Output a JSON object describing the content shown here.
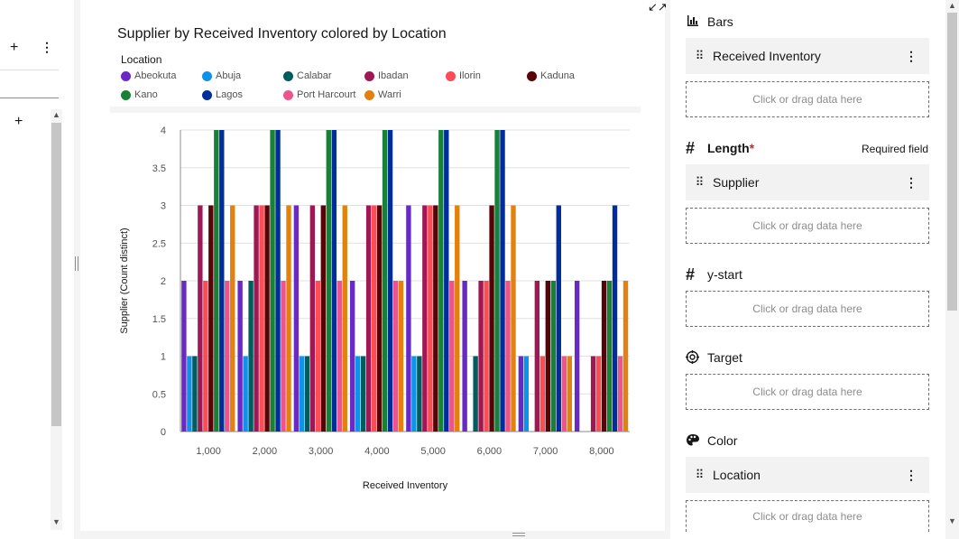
{
  "left_panel": {
    "plus_icon": "+",
    "kebab_icon": "⋮",
    "plus_icon_2": "+"
  },
  "collapse_icon": "↙↗",
  "chart_data": {
    "type": "bar",
    "title": "Supplier by Received Inventory colored by Location",
    "xlabel": "Received Inventory",
    "ylabel": "Supplier (Count distinct)",
    "ylim": [
      0,
      4
    ],
    "yticks": [
      "0",
      "0.5",
      "1",
      "1.5",
      "2",
      "2.5",
      "3",
      "3.5",
      "4"
    ],
    "categories": [
      "1,000",
      "2,000",
      "3,000",
      "4,000",
      "5,000",
      "6,000",
      "7,000",
      "8,000"
    ],
    "legend_title": "Location",
    "legend_placement": "top",
    "grid": true,
    "series": [
      {
        "name": "Abeokuta",
        "color": "#6929c4",
        "values": [
          2,
          2,
          3,
          2,
          3,
          2,
          1,
          2
        ]
      },
      {
        "name": "Abuja",
        "color": "#1192e8",
        "values": [
          1,
          1,
          1,
          1,
          1,
          0,
          1,
          0
        ]
      },
      {
        "name": "Calabar",
        "color": "#005d5d",
        "values": [
          1,
          2,
          1,
          1,
          1,
          1,
          0,
          0
        ]
      },
      {
        "name": "Ibadan",
        "color": "#9f1853",
        "values": [
          3,
          3,
          3,
          3,
          3,
          2,
          2,
          1
        ]
      },
      {
        "name": "Ilorin",
        "color": "#fa4d56",
        "values": [
          2,
          3,
          2,
          3,
          3,
          2,
          1,
          1
        ]
      },
      {
        "name": "Kaduna",
        "color": "#570408",
        "values": [
          3,
          3,
          3,
          3,
          3,
          3,
          2,
          2
        ]
      },
      {
        "name": "Kano",
        "color": "#198038",
        "values": [
          4,
          4,
          4,
          4,
          4,
          4,
          2,
          2
        ]
      },
      {
        "name": "Lagos",
        "color": "#002d9c",
        "values": [
          4,
          4,
          4,
          4,
          4,
          4,
          3,
          3
        ]
      },
      {
        "name": "Port Harcourt",
        "color": "#ee538b",
        "values": [
          2,
          2,
          2,
          2,
          2,
          2,
          1,
          1
        ]
      },
      {
        "name": "Warri",
        "color": "#e3810e",
        "values": [
          3,
          3,
          3,
          2,
          3,
          3,
          1,
          2
        ]
      }
    ]
  },
  "right_panel": {
    "bars": {
      "label": "Bars",
      "icon": "bar-chart-icon",
      "field": "Received Inventory",
      "drop": "Click or drag data here"
    },
    "length": {
      "label": "Length",
      "required_mark": "*",
      "required_text": "Required field",
      "field": "Supplier",
      "drop": "Click or drag data here"
    },
    "ystart": {
      "label": "y-start",
      "drop": "Click or drag data here"
    },
    "target": {
      "label": "Target",
      "drop": "Click or drag data here"
    },
    "color": {
      "label": "Color",
      "field": "Location",
      "drop": "Click or drag data here"
    },
    "hash_glyph": "#",
    "grip_glyph": "⠿",
    "more_glyph": "⋮"
  }
}
